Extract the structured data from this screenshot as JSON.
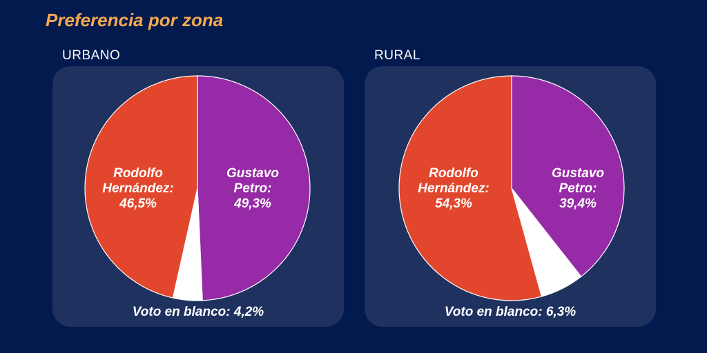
{
  "title": "Preferencia por zona",
  "colors": {
    "background": "#021a4e",
    "panel": "#1f315f",
    "title": "#f5a94e",
    "hernandez": "#e2472d",
    "petro": "#972aa6",
    "blanco": "#ffffff"
  },
  "chart_data": [
    {
      "type": "pie",
      "title": "URBANO",
      "slices": [
        {
          "label_lines": [
            "Gustavo",
            "Petro:",
            "49,3%"
          ],
          "value": 49.3,
          "color": "#972aa6"
        },
        {
          "label_lines": [],
          "value": 4.2,
          "color": "#ffffff"
        },
        {
          "label_lines": [
            "Rodolfo",
            "Hernández:",
            "46,5%"
          ],
          "value": 46.5,
          "color": "#e2472d"
        }
      ],
      "blank_label": "Voto en blanco: 4,2%"
    },
    {
      "type": "pie",
      "title": "RURAL",
      "slices": [
        {
          "label_lines": [
            "Gustavo",
            "Petro:",
            "39,4%"
          ],
          "value": 39.4,
          "color": "#972aa6"
        },
        {
          "label_lines": [],
          "value": 6.3,
          "color": "#ffffff"
        },
        {
          "label_lines": [
            "Rodolfo",
            "Hernández:",
            "54,3%"
          ],
          "value": 54.3,
          "color": "#e2472d"
        }
      ],
      "blank_label": "Voto en blanco: 6,3%"
    }
  ]
}
